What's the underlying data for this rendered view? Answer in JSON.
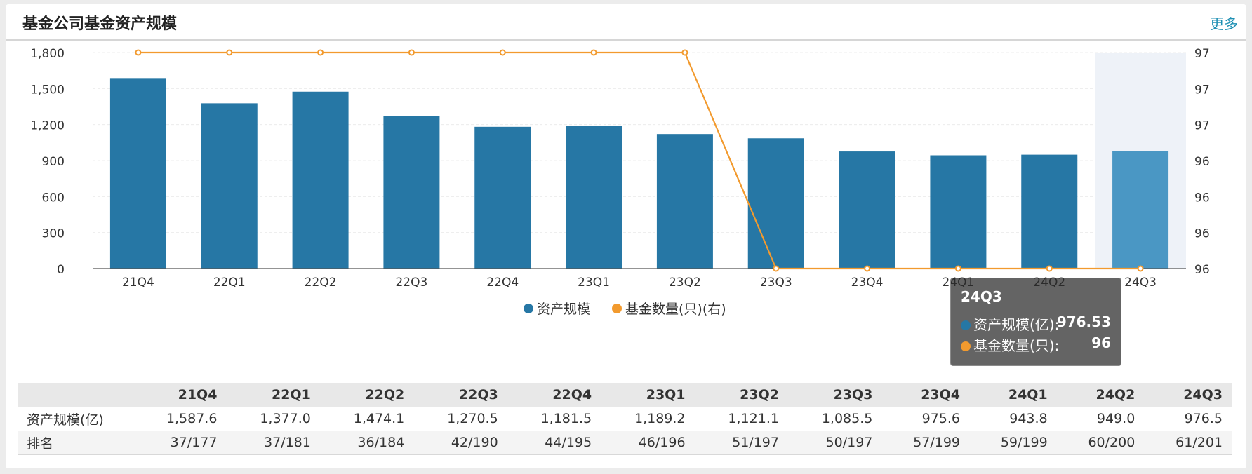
{
  "header": {
    "title": "基金公司基金资产规模",
    "more": "更多"
  },
  "colors": {
    "bar": "#2677a5",
    "bar_highlight": "#4a97c4",
    "line": "#f29a2e"
  },
  "chart_data": {
    "type": "bar",
    "categories": [
      "21Q4",
      "22Q1",
      "22Q2",
      "22Q3",
      "22Q4",
      "23Q1",
      "23Q2",
      "23Q3",
      "23Q4",
      "24Q1",
      "24Q2",
      "24Q3"
    ],
    "series": [
      {
        "name": "资产规模",
        "type": "bar",
        "axis": "left",
        "values": [
          1587.6,
          1377.0,
          1474.1,
          1270.5,
          1181.5,
          1189.2,
          1121.1,
          1085.5,
          975.6,
          943.8,
          949.0,
          976.5
        ]
      },
      {
        "name": "基金数量(只)(右)",
        "type": "line",
        "axis": "right",
        "values": [
          97,
          97,
          97,
          97,
          97,
          97,
          97,
          96,
          96,
          96,
          96,
          96
        ]
      }
    ],
    "y_left": {
      "ylim": [
        0,
        1800
      ],
      "ticks": [
        "0",
        "300",
        "600",
        "900",
        "1,200",
        "1,500",
        "1,800"
      ]
    },
    "y_right": {
      "ylim": [
        96,
        97
      ],
      "ticks": [
        "96",
        "96",
        "96",
        "96",
        "97",
        "97",
        "97"
      ]
    },
    "grid": true,
    "legend": "bottom-center",
    "highlighted_category": "24Q3",
    "tooltip": {
      "title": "24Q3",
      "rows": [
        {
          "label": "资产规模(亿):",
          "value": "976.53"
        },
        {
          "label": "基金数量(只):",
          "value": "96"
        }
      ]
    }
  },
  "table": {
    "headers": [
      "",
      "21Q4",
      "22Q1",
      "22Q2",
      "22Q3",
      "22Q4",
      "23Q1",
      "23Q2",
      "23Q3",
      "23Q4",
      "24Q1",
      "24Q2",
      "24Q3"
    ],
    "rows": [
      [
        "资产规模(亿)",
        "1,587.6",
        "1,377.0",
        "1,474.1",
        "1,270.5",
        "1,181.5",
        "1,189.2",
        "1,121.1",
        "1,085.5",
        "975.6",
        "943.8",
        "949.0",
        "976.5"
      ],
      [
        "排名",
        "37/177",
        "37/181",
        "36/184",
        "42/190",
        "44/195",
        "46/196",
        "51/197",
        "50/197",
        "57/199",
        "59/199",
        "60/200",
        "61/201"
      ]
    ]
  }
}
